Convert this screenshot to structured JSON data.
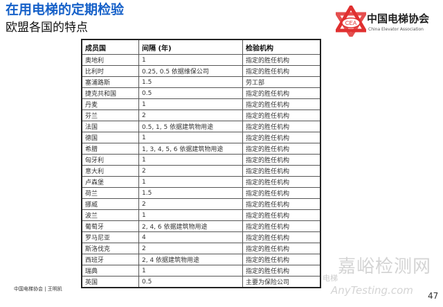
{
  "header": {
    "title": "在用电梯的定期检验",
    "subtitle": "欧盟各国的特点"
  },
  "logo": {
    "cn": "中国电梯协会",
    "en": "China Elevator Association",
    "badge": "CEA",
    "color": "#e03030"
  },
  "table": {
    "columns": [
      "成员国",
      "间隔 (年)",
      "检验机构"
    ],
    "rows": [
      [
        "奥地利",
        "1",
        "指定的胜任机构"
      ],
      [
        "比利时",
        "0.25, 0.5 依据维保公司",
        "指定的胜任机构"
      ],
      [
        "塞浦路斯",
        "1.5",
        "劳工部"
      ],
      [
        "捷克共和国",
        "0.5",
        "指定的胜任机构"
      ],
      [
        "丹麦",
        "1",
        "指定的胜任机构"
      ],
      [
        "芬兰",
        "2",
        "指定的胜任机构"
      ],
      [
        "法国",
        "0.5, 1, 5 依据建筑物用途",
        "指定的胜任机构"
      ],
      [
        "德国",
        "1",
        "指定的胜任机构"
      ],
      [
        "希腊",
        "1, 3, 4, 5, 6 依据建筑物用途",
        "指定的胜任机构"
      ],
      [
        "匈牙利",
        "1",
        "指定的胜任机构"
      ],
      [
        "意大利",
        "2",
        "指定的胜任机构"
      ],
      [
        "卢森堡",
        "1",
        "指定的胜任机构"
      ],
      [
        "荷兰",
        "1.5",
        "指定的胜任机构"
      ],
      [
        "挪威",
        "2",
        "指定的胜任机构"
      ],
      [
        "波兰",
        "1",
        "指定的胜任机构"
      ],
      [
        "葡萄牙",
        "2, 4, 6 依据建筑物用途",
        "指定的胜任机构"
      ],
      [
        "罗马尼亚",
        "4",
        "指定的胜任机构"
      ],
      [
        "斯洛伐克",
        "2",
        "指定的胜任机构"
      ],
      [
        "西班牙",
        "2, 4 依据建筑物用途",
        "指定的胜任机构"
      ],
      [
        "瑞典",
        "1",
        "指定的胜任机构"
      ],
      [
        "英国",
        "0.5",
        "主要为保险公司"
      ]
    ]
  },
  "footer": {
    "text": "中国电梯协会 | 王明凯",
    "page": "47"
  },
  "watermark": {
    "cn": "嘉峪检测网",
    "en": "AnyTesting.com",
    "tag": "电梯"
  }
}
